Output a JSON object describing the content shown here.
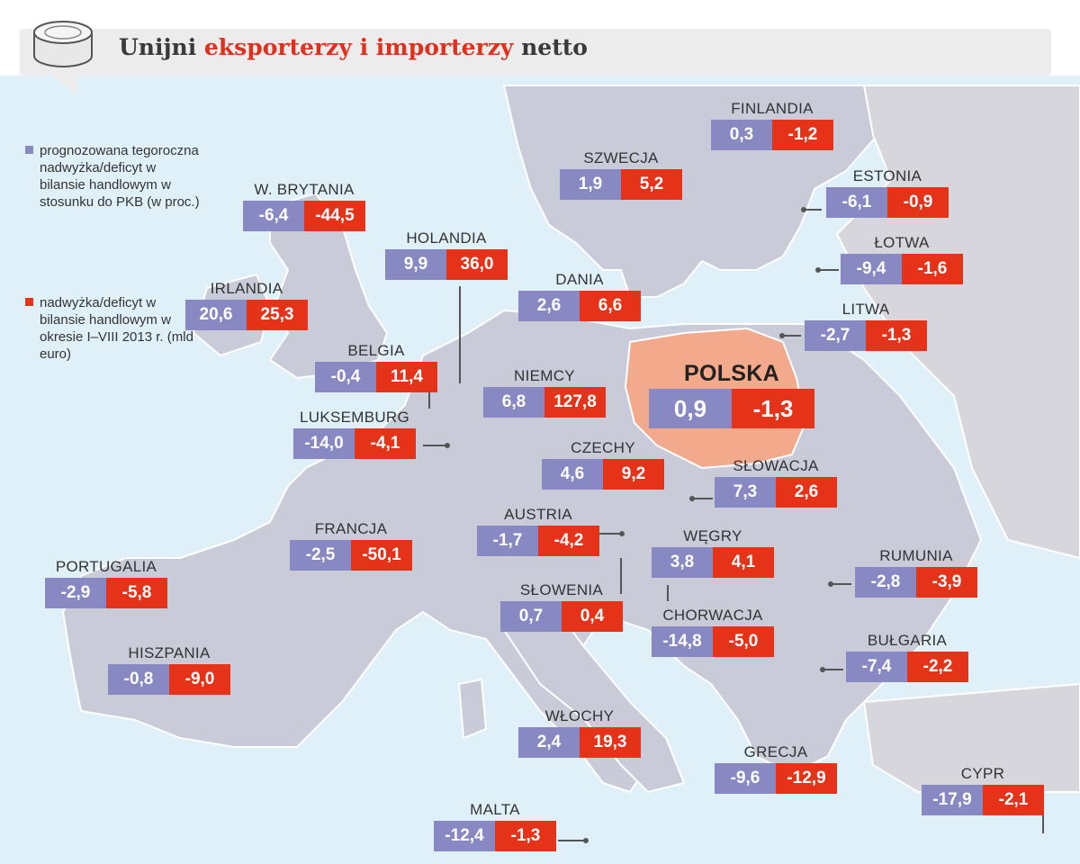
{
  "title": {
    "part1": "Unijni ",
    "part2": "eksporterzy i importerzy",
    "part3": " netto"
  },
  "colors": {
    "forecast": "#8888c2",
    "balance": "#e53319",
    "sea": "#dff0f8",
    "land": "#cacbd9",
    "poland": "#f2a98c"
  },
  "legend": {
    "forecast": "prognozowana tegoroczna nadwyżka/deficyt w bilansie handlowym w stosunku do PKB (w proc.)",
    "balance": "nadwyżka/deficyt w bilansie handlowym w okresie I–VIII 2013 r. (mld euro)"
  },
  "countries": {
    "finlandia": {
      "name": "FINLANDIA",
      "forecast": "0,3",
      "balance": "-1,2"
    },
    "szwecja": {
      "name": "SZWECJA",
      "forecast": "1,9",
      "balance": "5,2"
    },
    "estonia": {
      "name": "ESTONIA",
      "forecast": "-6,1",
      "balance": "-0,9"
    },
    "wbrytania": {
      "name": "W. BRYTANIA",
      "forecast": "-6,4",
      "balance": "-44,5"
    },
    "holandia": {
      "name": "HOLANDIA",
      "forecast": "9,9",
      "balance": "36,0"
    },
    "lotwa": {
      "name": "ŁOTWA",
      "forecast": "-9,4",
      "balance": "-1,6"
    },
    "dania": {
      "name": "DANIA",
      "forecast": "2,6",
      "balance": "6,6"
    },
    "irlandia": {
      "name": "IRLANDIA",
      "forecast": "20,6",
      "balance": "25,3"
    },
    "litwa": {
      "name": "LITWA",
      "forecast": "-2,7",
      "balance": "-1,3"
    },
    "belgia": {
      "name": "BELGIA",
      "forecast": "-0,4",
      "balance": "11,4"
    },
    "polska": {
      "name": "POLSKA",
      "forecast": "0,9",
      "balance": "-1,3"
    },
    "niemcy": {
      "name": "NIEMCY",
      "forecast": "6,8",
      "balance": "127,8"
    },
    "luksemburg": {
      "name": "LUKSEMBURG",
      "forecast": "-14,0",
      "balance": "-4,1"
    },
    "czechy": {
      "name": "CZECHY",
      "forecast": "4,6",
      "balance": "9,2"
    },
    "slowacja": {
      "name": "SŁOWACJA",
      "forecast": "7,3",
      "balance": "2,6"
    },
    "francja": {
      "name": "FRANCJA",
      "forecast": "-2,5",
      "balance": "-50,1"
    },
    "austria": {
      "name": "AUSTRIA",
      "forecast": "-1,7",
      "balance": "-4,2"
    },
    "wegry": {
      "name": "WĘGRY",
      "forecast": "3,8",
      "balance": "4,1"
    },
    "portugalia": {
      "name": "PORTUGALIA",
      "forecast": "-2,9",
      "balance": "-5,8"
    },
    "rumunia": {
      "name": "RUMUNIA",
      "forecast": "-2,8",
      "balance": "-3,9"
    },
    "slowenia": {
      "name": "SŁOWENIA",
      "forecast": "0,7",
      "balance": "0,4"
    },
    "chorwacja": {
      "name": "CHORWACJA",
      "forecast": "-14,8",
      "balance": "-5,0"
    },
    "hiszpania": {
      "name": "HISZPANIA",
      "forecast": "-0,8",
      "balance": "-9,0"
    },
    "bulgaria": {
      "name": "BUŁGARIA",
      "forecast": "-7,4",
      "balance": "-2,2"
    },
    "wlochy": {
      "name": "WŁOCHY",
      "forecast": "2,4",
      "balance": "19,3"
    },
    "grecja": {
      "name": "GRECJA",
      "forecast": "-9,6",
      "balance": "-12,9"
    },
    "cypr": {
      "name": "CYPR",
      "forecast": "-17,9",
      "balance": "-2,1"
    },
    "malta": {
      "name": "MALTA",
      "forecast": "-12,4",
      "balance": "-1,3"
    }
  }
}
